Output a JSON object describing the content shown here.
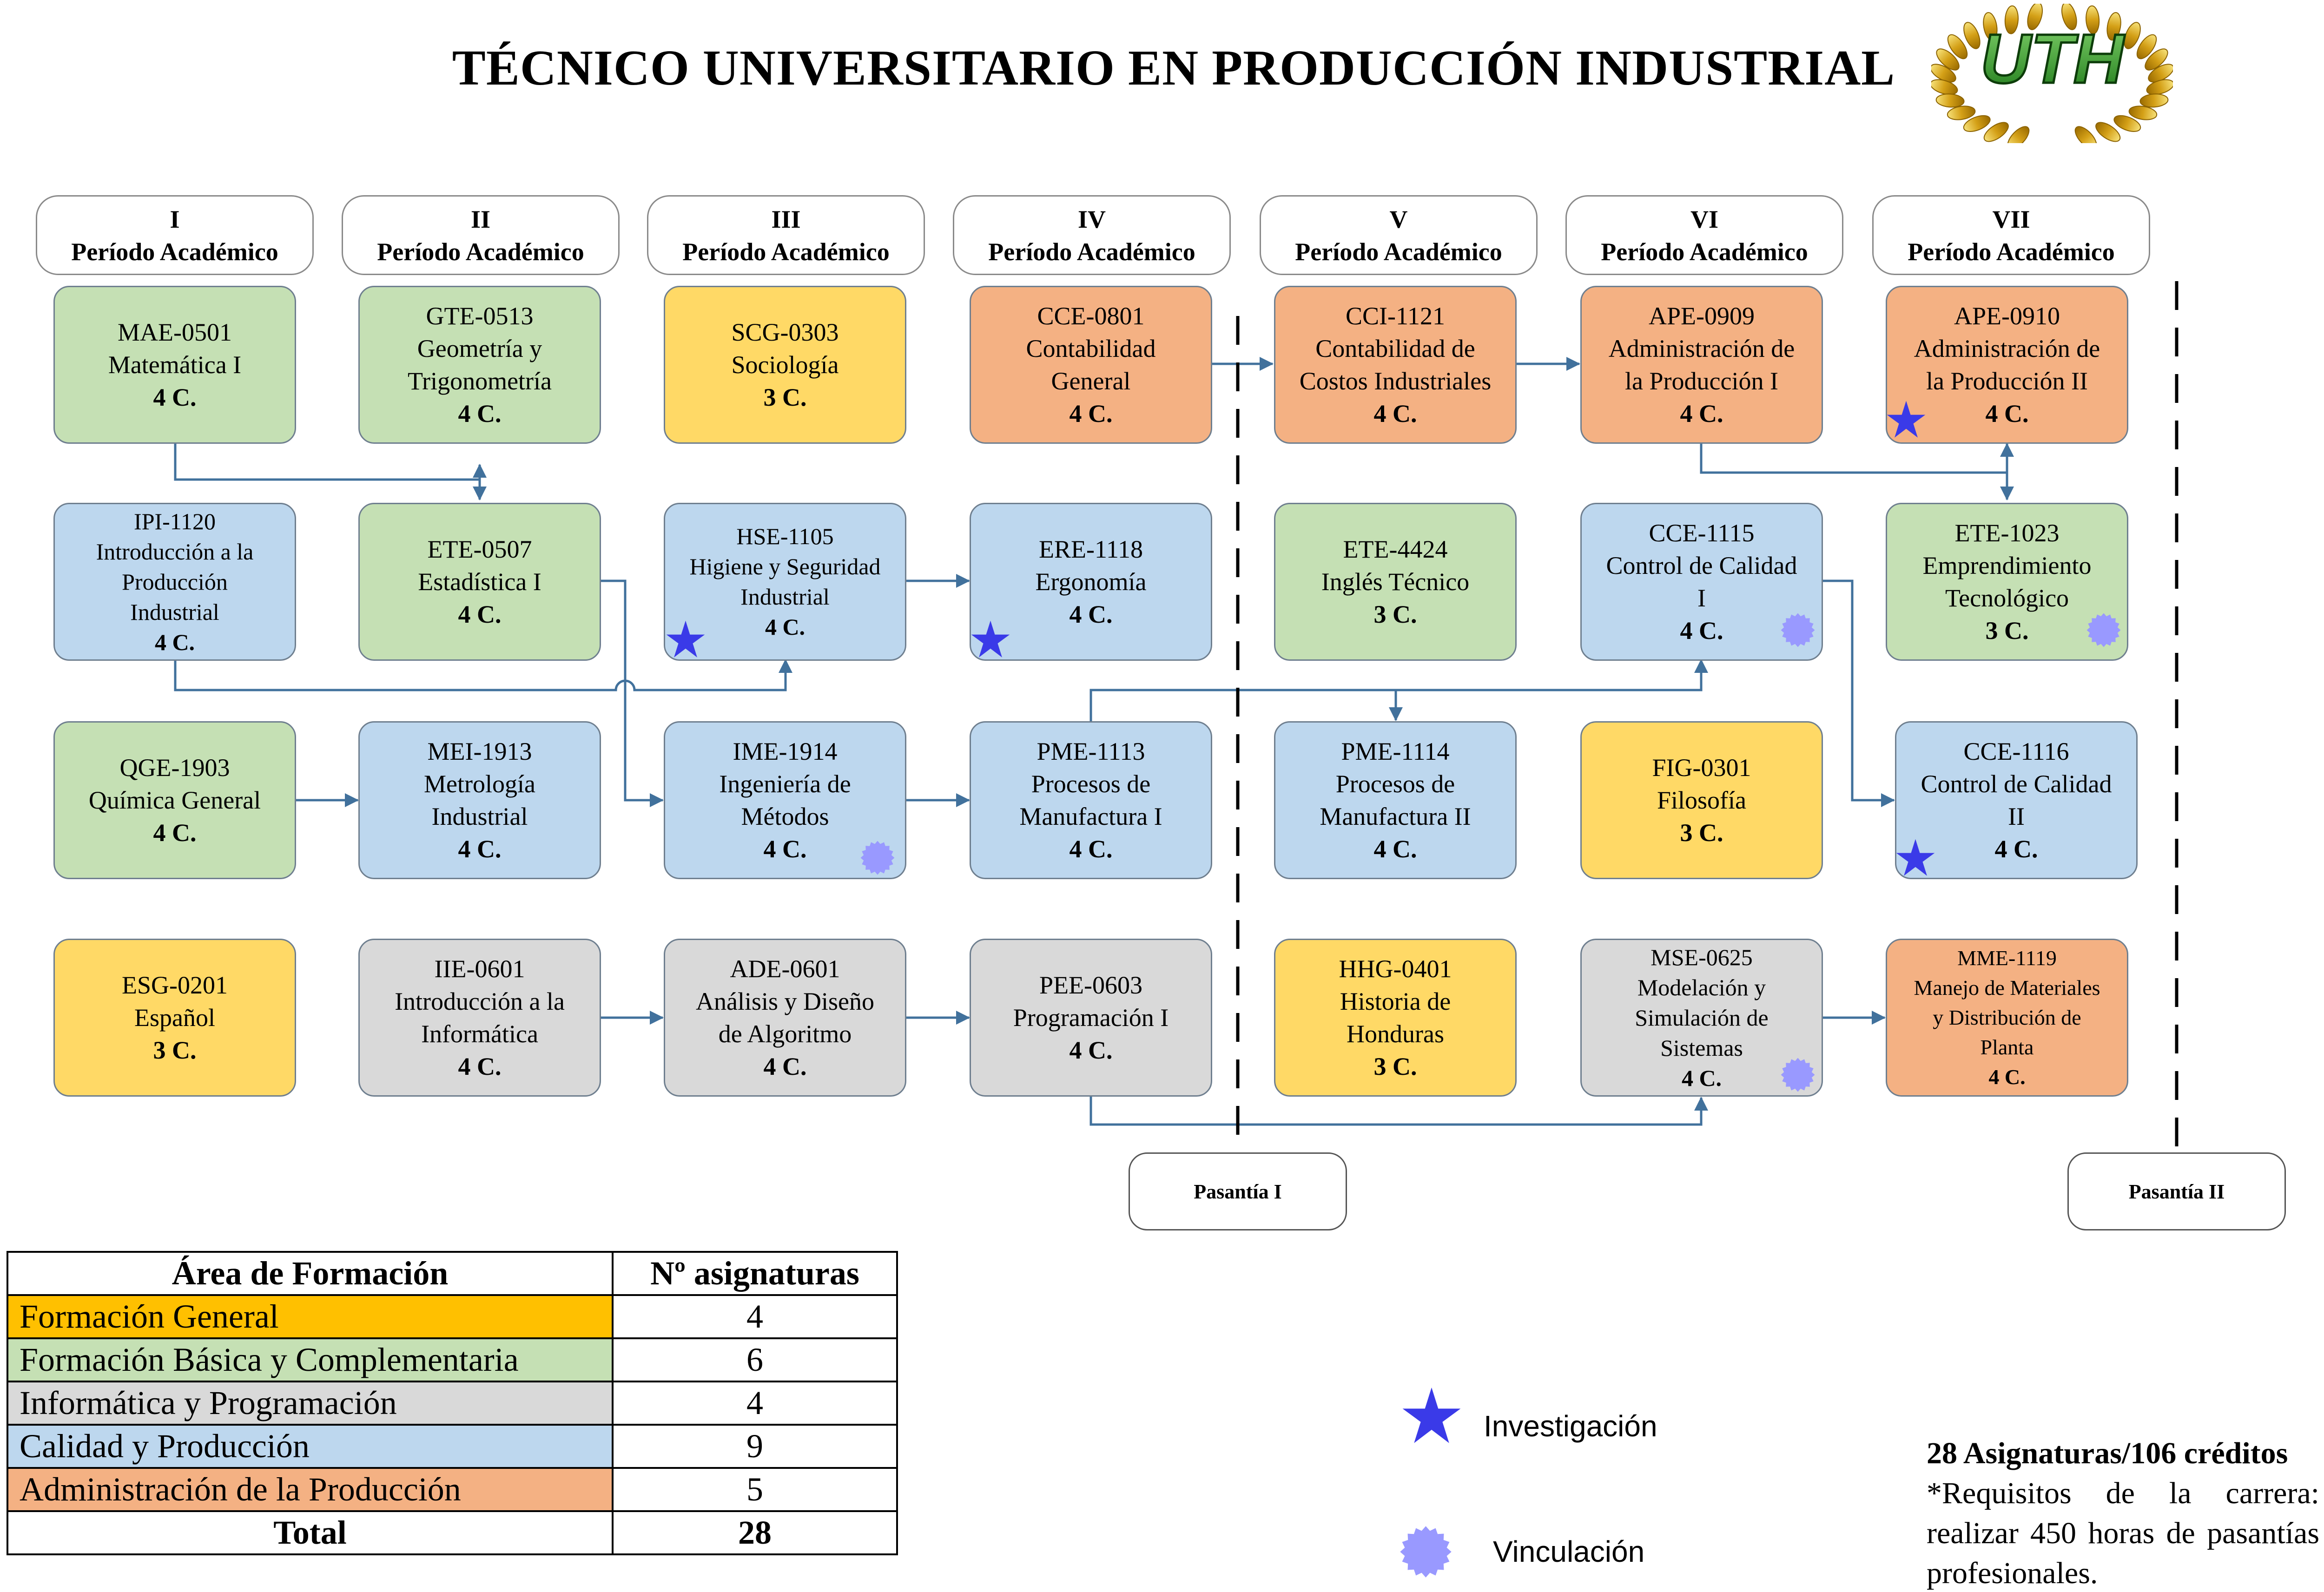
{
  "title": "TÉCNICO UNIVERSITARIO EN PRODUCCIÓN INDUSTRIAL",
  "logo_text": "UTH",
  "colors": {
    "formacion_general": "#ffd966",
    "formacion_basica": "#c5e0b4",
    "informatica": "#d9d9d9",
    "calidad": "#bdd7ee",
    "administracion": "#f4b183",
    "connector": "#41719c",
    "investigacion_star": "#3a3ae8",
    "vinculacion_sun": "#9999ff"
  },
  "periods": [
    {
      "num": "I",
      "label": "Período Académico"
    },
    {
      "num": "II",
      "label": "Período Académico"
    },
    {
      "num": "III",
      "label": "Período Académico"
    },
    {
      "num": "IV",
      "label": "Período Académico"
    },
    {
      "num": "V",
      "label": "Período Académico"
    },
    {
      "num": "VI",
      "label": "Período Académico"
    },
    {
      "num": "VII",
      "label": "Período Académico"
    }
  ],
  "courses": {
    "mae0501": {
      "code": "MAE-0501",
      "name": [
        "Matemática I"
      ],
      "credits": "4 C.",
      "area": "basica"
    },
    "gte0513": {
      "code": "GTE-0513",
      "name": [
        "Geometría y",
        "Trigonometría"
      ],
      "credits": "4 C.",
      "area": "basica"
    },
    "scg0303": {
      "code": "SCG-0303",
      "name": [
        "Sociología"
      ],
      "credits": "3 C.",
      "area": "general"
    },
    "cce0801": {
      "code": "CCE-0801",
      "name": [
        "Contabilidad",
        "General"
      ],
      "credits": "4 C.",
      "area": "administracion"
    },
    "cci1121": {
      "code": "CCI-1121",
      "name": [
        "Contabilidad de",
        "Costos Industriales"
      ],
      "credits": "4 C.",
      "area": "administracion"
    },
    "ape0909": {
      "code": "APE-0909",
      "name": [
        "Administración de",
        "la Producción I"
      ],
      "credits": "4 C.",
      "area": "administracion"
    },
    "ape0910": {
      "code": "APE-0910",
      "name": [
        "Administración de",
        "la Producción II"
      ],
      "credits": "4 C.",
      "area": "administracion",
      "mark": "investigacion"
    },
    "ipi1120": {
      "code": "IPI-1120",
      "name": [
        "Introducción a la",
        "Producción",
        "Industrial"
      ],
      "credits": "4 C.",
      "area": "calidad"
    },
    "ete0507": {
      "code": "ETE-0507",
      "name": [
        "Estadística I"
      ],
      "credits": "4 C.",
      "area": "basica"
    },
    "hse1105": {
      "code": "HSE-1105",
      "name": [
        "Higiene y Seguridad",
        "Industrial"
      ],
      "credits": "4 C.",
      "area": "calidad",
      "mark": "investigacion"
    },
    "ere1118": {
      "code": "ERE-1118",
      "name": [
        "Ergonomía"
      ],
      "credits": "4 C.",
      "area": "calidad",
      "mark": "investigacion"
    },
    "ete4424": {
      "code": "ETE-4424",
      "name": [
        "Inglés Técnico"
      ],
      "credits": "3 C.",
      "area": "basica"
    },
    "cce1115": {
      "code": "CCE-1115",
      "name": [
        "Control de Calidad",
        "I"
      ],
      "credits": "4 C.",
      "area": "calidad",
      "mark": "vinculacion"
    },
    "ete1023": {
      "code": "ETE-1023",
      "name": [
        "Emprendimiento",
        "Tecnológico"
      ],
      "credits": "3 C.",
      "area": "basica",
      "mark": "vinculacion"
    },
    "qge1903": {
      "code": "QGE-1903",
      "name": [
        "Química General"
      ],
      "credits": "4 C.",
      "area": "basica"
    },
    "mei1913": {
      "code": "MEI-1913",
      "name": [
        "Metrología",
        "Industrial"
      ],
      "credits": "4 C.",
      "area": "calidad"
    },
    "ime1914": {
      "code": "IME-1914",
      "name": [
        "Ingeniería de",
        "Métodos"
      ],
      "credits": "4 C.",
      "area": "calidad",
      "mark": "vinculacion"
    },
    "pme1113": {
      "code": "PME-1113",
      "name": [
        "Procesos de",
        "Manufactura I"
      ],
      "credits": "4 C.",
      "area": "calidad"
    },
    "pme1114": {
      "code": "PME-1114",
      "name": [
        "Procesos de",
        "Manufactura II"
      ],
      "credits": "4 C.",
      "area": "calidad"
    },
    "fig0301": {
      "code": "FIG-0301",
      "name": [
        "Filosofía"
      ],
      "credits": "3 C.",
      "area": "general"
    },
    "cce1116": {
      "code": "CCE-1116",
      "name": [
        "Control de Calidad",
        "II"
      ],
      "credits": "4 C.",
      "area": "calidad",
      "mark": "investigacion"
    },
    "esg0201": {
      "code": "ESG-0201",
      "name": [
        "Español"
      ],
      "credits": "3 C.",
      "area": "general"
    },
    "iie0601": {
      "code": "IIE-0601",
      "name": [
        "Introducción a la",
        "Informática"
      ],
      "credits": "4 C.",
      "area": "informatica"
    },
    "ade0601": {
      "code": "ADE-0601",
      "name": [
        "Análisis y Diseño",
        "de Algoritmo"
      ],
      "credits": "4 C.",
      "area": "informatica"
    },
    "pee0603": {
      "code": "PEE-0603",
      "name": [
        "Programación I"
      ],
      "credits": "4 C.",
      "area": "informatica"
    },
    "hhg0401": {
      "code": "HHG-0401",
      "name": [
        "Historia de",
        "Honduras"
      ],
      "credits": "3 C.",
      "area": "general"
    },
    "mse0625": {
      "code": "MSE-0625",
      "name": [
        "Modelación y",
        "Simulación de",
        "Sistemas"
      ],
      "credits": "4 C.",
      "area": "informatica",
      "mark": "vinculacion"
    },
    "mme1119": {
      "code": "MME-1119",
      "name": [
        "Manejo de Materiales",
        "y Distribución de",
        "Planta"
      ],
      "credits": "4 C.",
      "area": "administracion"
    }
  },
  "pasantias": [
    "Pasantía I",
    "Pasantía II"
  ],
  "summary_table": {
    "headers": [
      "Área de Formación",
      "Nº asignaturas"
    ],
    "rows": [
      {
        "area": "Formación General",
        "count": "4",
        "color": "#ffc000"
      },
      {
        "area": "Formación Básica y Complementaria",
        "count": "6",
        "color": "#c5e0b4"
      },
      {
        "area": "Informática y Programación",
        "count": "4",
        "color": "#d9d9d9"
      },
      {
        "area": "Calidad y Producción",
        "count": "9",
        "color": "#bdd7ee"
      },
      {
        "area": "Administración de la Producción",
        "count": "5",
        "color": "#f4b183"
      }
    ],
    "total_label": "Total",
    "total_count": "28"
  },
  "legend": {
    "investigacion": "Investigación",
    "vinculacion": "Vinculación"
  },
  "footnote": {
    "headline": "28 Asignaturas/106 créditos",
    "text": "*Requisitos de la carrera: realizar 450 horas de pasantías profesionales."
  }
}
